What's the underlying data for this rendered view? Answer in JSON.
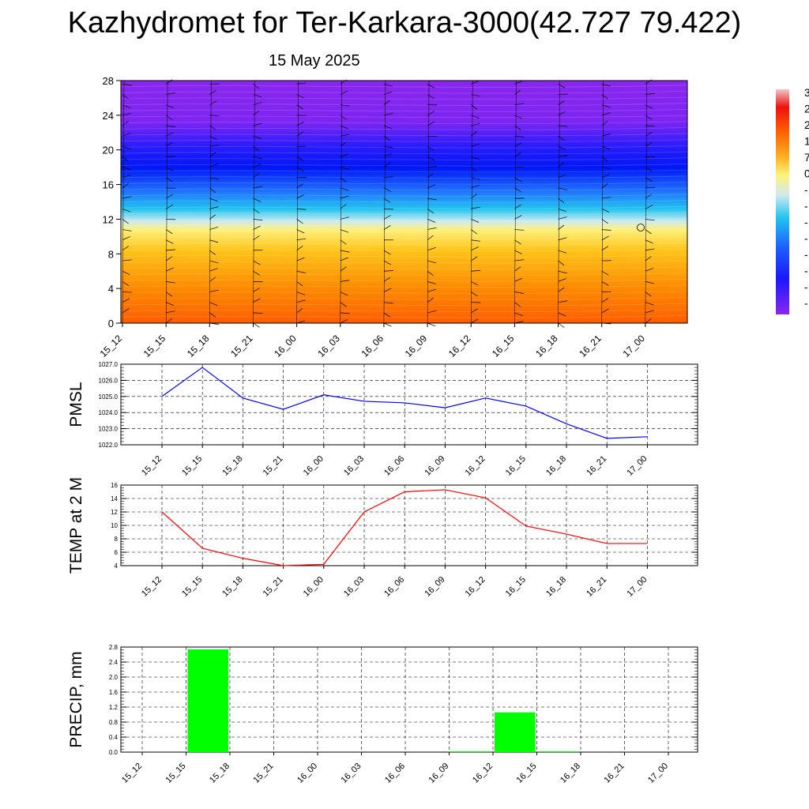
{
  "header": {
    "title": "Kazhydromet for Ter-Karkara-3000(42.727 79.422)",
    "date": "15 May 2025"
  },
  "chart_data": [
    {
      "type": "heatmap",
      "x_categories": [
        "15_12",
        "15_15",
        "15_18",
        "15_21",
        "16_00",
        "16_03",
        "16_06",
        "16_09",
        "16_12",
        "16_15",
        "16_18",
        "16_21",
        "17_00"
      ],
      "y_ticks": [
        "0",
        "4",
        "8",
        "12",
        "16",
        "20",
        "24",
        "28"
      ],
      "ylim": [
        0,
        28
      ],
      "grid": false,
      "legend": "right"
    },
    {
      "type": "line",
      "ylabel": "PMSL",
      "x": [
        "15_12",
        "15_15",
        "15_18",
        "15_21",
        "16_00",
        "16_03",
        "16_06",
        "16_09",
        "16_12",
        "16_15",
        "16_18",
        "16_21",
        "17_00"
      ],
      "y_ticks": [
        "1022.0",
        "1023.0",
        "1024.0",
        "1025.0",
        "1026.0",
        "1027.0"
      ],
      "ylim": [
        1022,
        1027
      ],
      "values": [
        1025.0,
        1026.8,
        1024.9,
        1024.2,
        1025.1,
        1024.7,
        1024.6,
        1024.3,
        1024.9,
        1024.4,
        1023.3,
        1022.4,
        1022.5
      ],
      "color": "#0000ff",
      "grid": true
    },
    {
      "type": "line",
      "ylabel": "TEMP at 2 M",
      "x": [
        "15_12",
        "15_15",
        "15_18",
        "15_21",
        "16_00",
        "16_03",
        "16_06",
        "16_09",
        "16_12",
        "16_15",
        "16_18",
        "16_21",
        "17_00"
      ],
      "y_ticks": [
        "4",
        "6",
        "8",
        "10",
        "12",
        "14",
        "16"
      ],
      "ylim": [
        4,
        16
      ],
      "values": [
        12.0,
        6.6,
        5.1,
        4.0,
        4.2,
        12.0,
        15.0,
        15.3,
        14.1,
        9.9,
        8.7,
        7.3,
        7.3
      ],
      "color": "#ff0000",
      "grid": true
    },
    {
      "type": "bar",
      "ylabel": "PRECIP, mm",
      "categories": [
        "15_12",
        "15_15",
        "15_18",
        "15_21",
        "16_00",
        "16_03",
        "16_06",
        "16_09",
        "16_12",
        "16_15",
        "16_18",
        "16_21",
        "17_00"
      ],
      "y_ticks": [
        "0.0",
        "0.4",
        "0.8",
        "1.2",
        "1.6",
        "2.0",
        "2.4",
        "2.8"
      ],
      "ylim": [
        0,
        2.8
      ],
      "values": [
        0,
        2.74,
        0,
        0,
        0,
        0,
        0,
        0.02,
        1.06,
        0.02,
        0,
        0,
        0
      ],
      "color": "#00ff00",
      "grid": true
    }
  ],
  "colorbar": {
    "labels": [
      "3",
      "2",
      "2",
      "1",
      "7",
      "0",
      "-",
      "-",
      "-",
      "-",
      "-",
      "-",
      "-",
      "-"
    ]
  }
}
